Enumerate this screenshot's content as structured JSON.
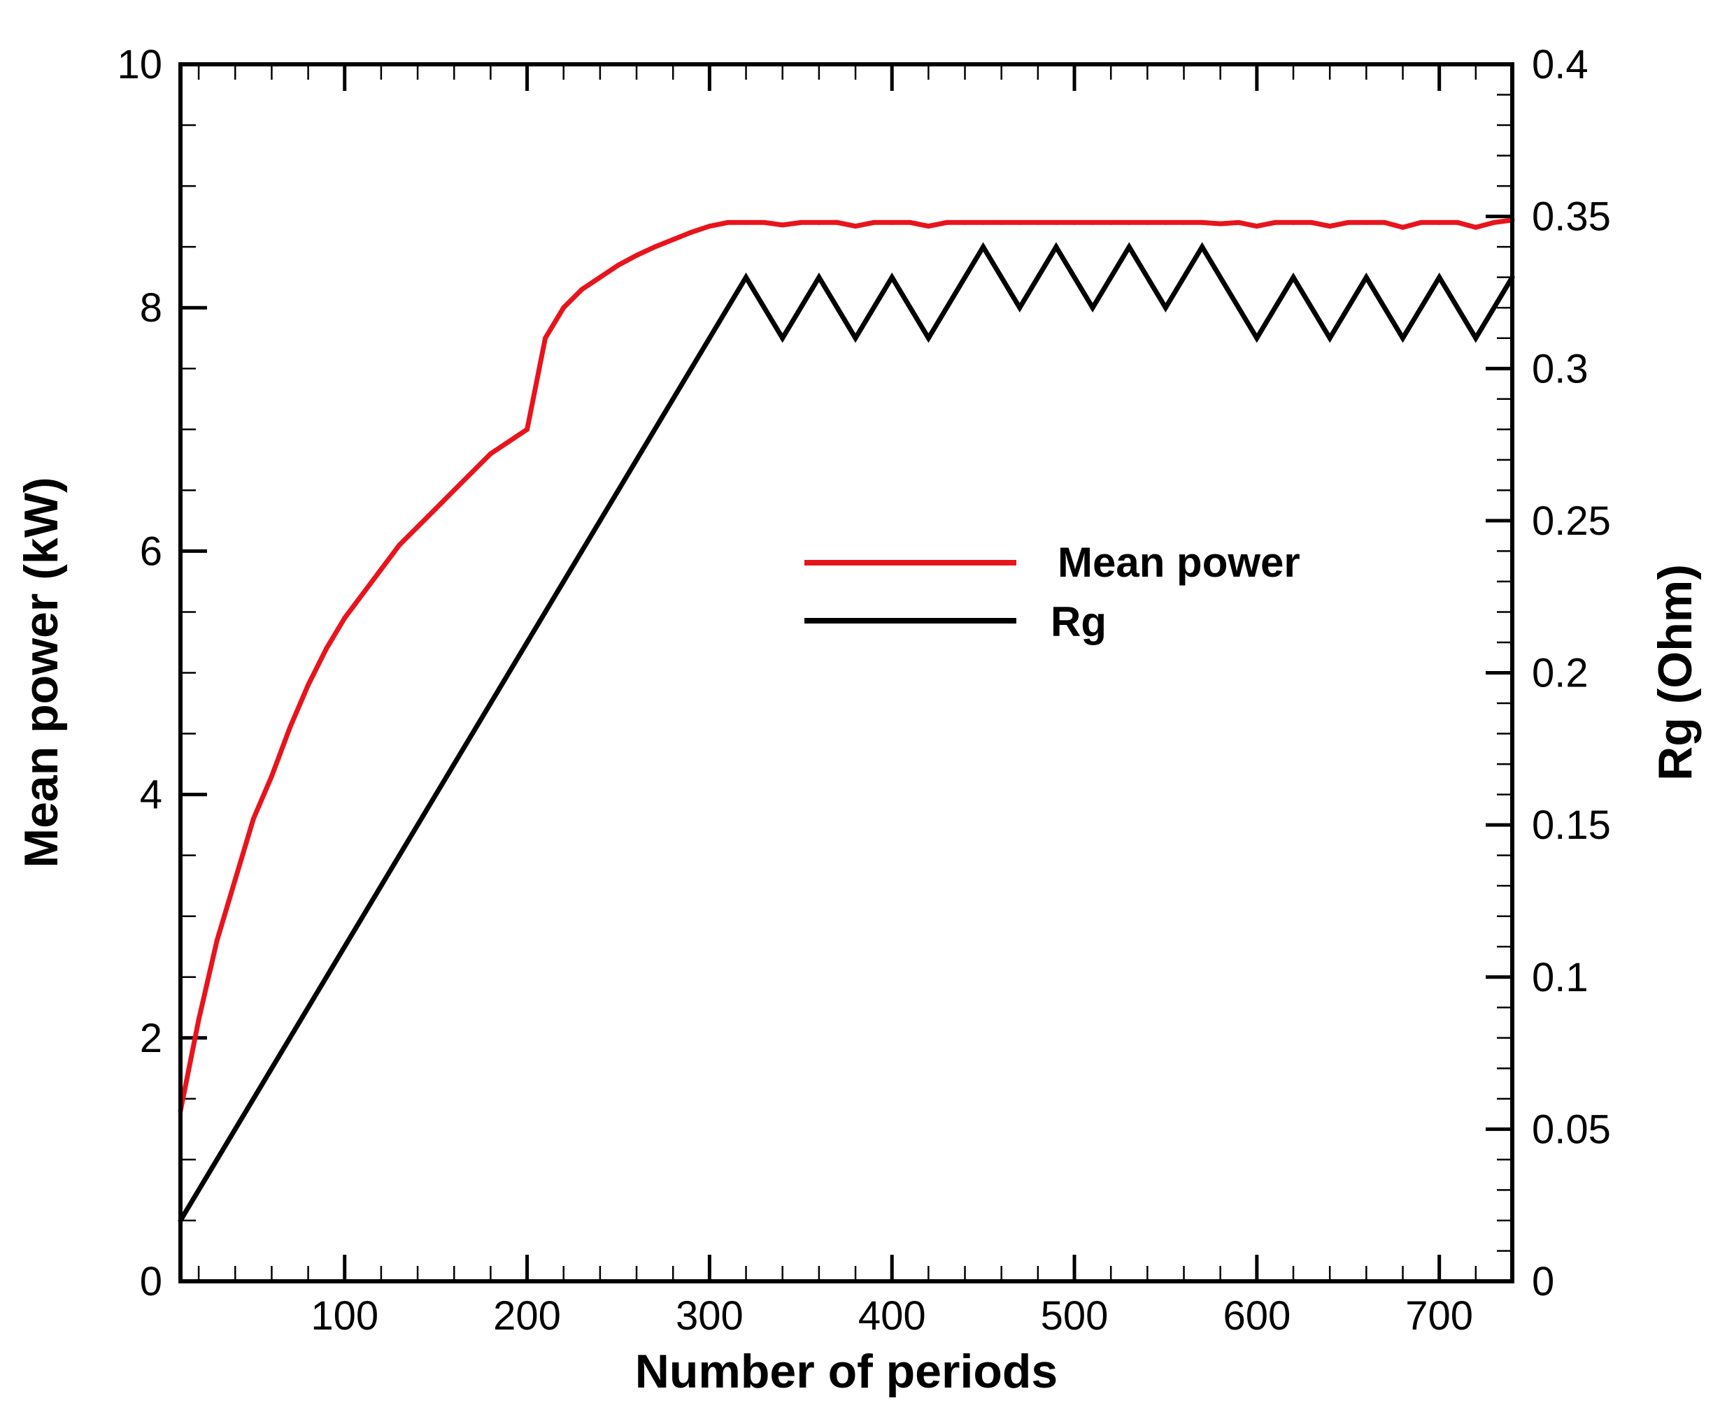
{
  "chart_data": {
    "type": "line",
    "title": "",
    "xlabel": "Number of periods",
    "ylabel_left": "Mean power (kW)",
    "ylabel_right": "Rg (Ohm)",
    "xlim": [
      10,
      740
    ],
    "ylim_left": [
      0,
      10
    ],
    "ylim_right": [
      0,
      0.4
    ],
    "x_ticks": [
      "100",
      "200",
      "300",
      "400",
      "500",
      "600",
      "700"
    ],
    "y_left_ticks": [
      "0",
      "2",
      "4",
      "6",
      "8",
      "10"
    ],
    "y_right_ticks": [
      "0",
      "0.05",
      "0.1",
      "0.15",
      "0.2",
      "0.25",
      "0.3",
      "0.35",
      "0.4"
    ],
    "grid": false,
    "legend_position": "center-right",
    "series": [
      {
        "name": "Mean power",
        "axis": "left",
        "color": "#e8141c",
        "x": [
          10,
          20,
          30,
          40,
          50,
          60,
          70,
          80,
          90,
          100,
          110,
          120,
          130,
          140,
          150,
          160,
          170,
          180,
          190,
          200,
          210,
          220,
          230,
          240,
          250,
          260,
          270,
          280,
          290,
          300,
          310,
          320,
          330,
          340,
          350,
          360,
          370,
          380,
          390,
          400,
          410,
          420,
          430,
          440,
          450,
          460,
          470,
          480,
          490,
          500,
          510,
          520,
          530,
          540,
          550,
          560,
          570,
          580,
          590,
          600,
          610,
          620,
          630,
          640,
          650,
          660,
          670,
          680,
          690,
          700,
          710,
          720,
          730,
          740
        ],
        "values": [
          1.4,
          2.15,
          2.8,
          3.3,
          3.8,
          4.15,
          4.55,
          4.9,
          5.2,
          5.45,
          5.65,
          5.85,
          6.05,
          6.2,
          6.35,
          6.5,
          6.65,
          6.8,
          6.9,
          7.0,
          7.75,
          8.0,
          8.15,
          8.25,
          8.35,
          8.43,
          8.5,
          8.56,
          8.62,
          8.67,
          8.7,
          8.7,
          8.7,
          8.68,
          8.7,
          8.7,
          8.7,
          8.67,
          8.7,
          8.7,
          8.7,
          8.67,
          8.7,
          8.7,
          8.7,
          8.7,
          8.7,
          8.7,
          8.7,
          8.7,
          8.7,
          8.7,
          8.7,
          8.7,
          8.7,
          8.7,
          8.7,
          8.69,
          8.7,
          8.67,
          8.7,
          8.7,
          8.7,
          8.67,
          8.7,
          8.7,
          8.7,
          8.66,
          8.7,
          8.7,
          8.7,
          8.66,
          8.7,
          8.72
        ]
      },
      {
        "name": "Rg",
        "axis": "right",
        "color": "#000000",
        "x": [
          10,
          320,
          340,
          360,
          380,
          400,
          420,
          450,
          470,
          490,
          510,
          530,
          550,
          570,
          600,
          620,
          640,
          660,
          680,
          700,
          720,
          740
        ],
        "values": [
          0.02,
          0.33,
          0.31,
          0.33,
          0.31,
          0.33,
          0.31,
          0.34,
          0.32,
          0.34,
          0.32,
          0.34,
          0.32,
          0.34,
          0.31,
          0.33,
          0.31,
          0.33,
          0.31,
          0.33,
          0.31,
          0.33
        ]
      }
    ]
  }
}
